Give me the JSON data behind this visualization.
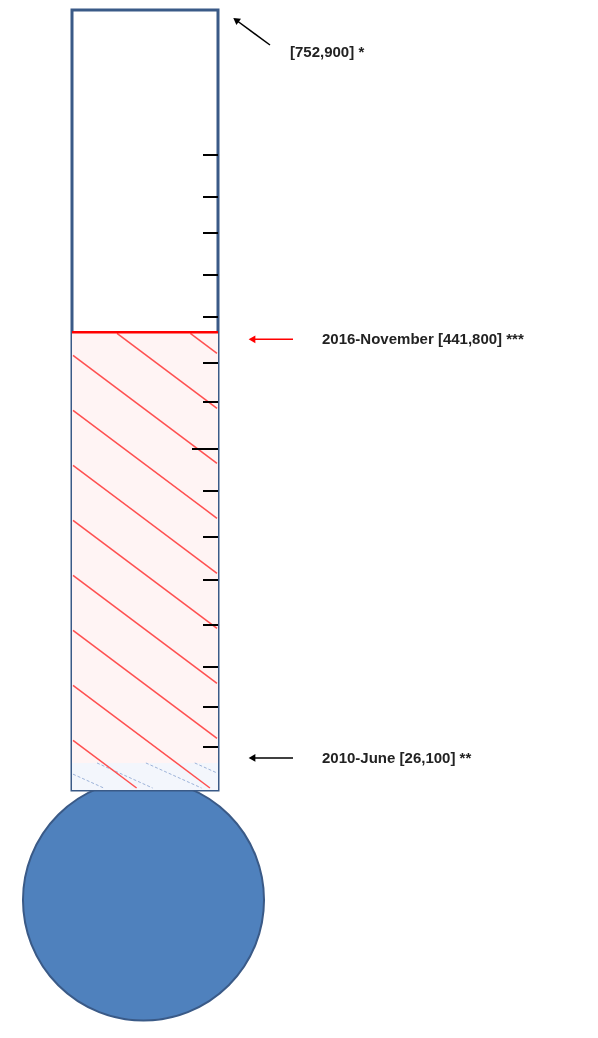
{
  "chart_data": {
    "type": "other",
    "values": [
      752900,
      441800,
      26100
    ],
    "value_labels": [
      "[752,900] *",
      "2016-November [441,800] ***",
      "2010-June [26,100] **"
    ]
  }
}
